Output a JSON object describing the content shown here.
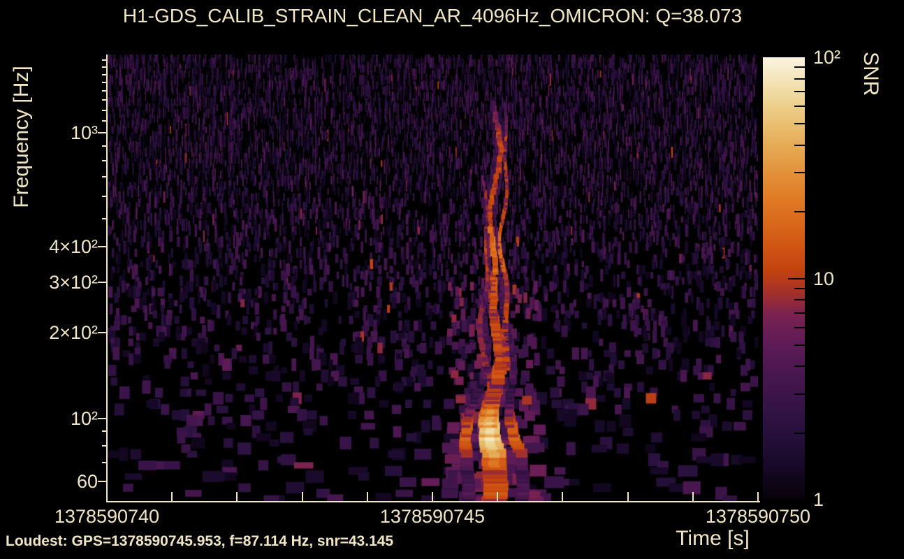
{
  "style": {
    "text_color": "#f1e6c4",
    "background_color": "#000000",
    "plot_background": "#000000"
  },
  "chart_data": {
    "type": "heatmap",
    "subtype": "omicron_q_transform_spectrogram",
    "title": "H1-GDS_CALIB_STRAIN_CLEAN_AR_4096Hz_OMICRON: Q=38.073",
    "q_value": 38.073,
    "xlabel": "Time [s]",
    "ylabel": "Frequency [Hz]",
    "x_unit": "GPS seconds",
    "xlim": [
      1378590740,
      1378590750
    ],
    "x_major_ticks": [
      {
        "value": 1378590740,
        "label": "1378590740"
      },
      {
        "value": 1378590745,
        "label": "1378590745"
      },
      {
        "value": 1378590750,
        "label": "1378590750"
      }
    ],
    "x_minor_tick_interval_s": 1,
    "yscale": "log",
    "ylim_hz": [
      51,
      1880
    ],
    "y_major_ticks": [
      {
        "hz": 1000,
        "label": "10³"
      },
      {
        "hz": 400,
        "label": "4×10²"
      },
      {
        "hz": 300,
        "label": "3×10²"
      },
      {
        "hz": 200,
        "label": "2×10²"
      },
      {
        "hz": 100,
        "label": "10²"
      },
      {
        "hz": 60,
        "label": "60"
      }
    ],
    "y_minor_ticks_hz": [
      60,
      70,
      80,
      90,
      100,
      200,
      300,
      400,
      500,
      600,
      700,
      800,
      900,
      1000,
      1100,
      1200,
      1300,
      1400,
      1500,
      1600,
      1700,
      1800,
      1900
    ],
    "colorbar": {
      "label": "SNR",
      "scale": "log",
      "lim": [
        1,
        100
      ],
      "major_ticks": [
        {
          "value": 100,
          "label": "10²"
        },
        {
          "value": 10,
          "label": "10"
        },
        {
          "value": 1,
          "label": "1"
        }
      ],
      "minor_ticks": [
        2,
        3,
        4,
        5,
        6,
        7,
        8,
        9,
        20,
        30,
        40,
        50,
        60,
        70,
        80,
        90
      ],
      "colormap_stops": [
        [
          0.0,
          "#060208"
        ],
        [
          0.07,
          "#150825"
        ],
        [
          0.14,
          "#241039"
        ],
        [
          0.21,
          "#351346"
        ],
        [
          0.29,
          "#4a1750"
        ],
        [
          0.36,
          "#611c57"
        ],
        [
          0.42,
          "#7a2250"
        ],
        [
          0.46,
          "#9e2e2e"
        ],
        [
          0.52,
          "#c4430f"
        ],
        [
          0.6,
          "#d55f17"
        ],
        [
          0.68,
          "#df7b24"
        ],
        [
          0.76,
          "#e39a42"
        ],
        [
          0.83,
          "#e8b765"
        ],
        [
          0.9,
          "#eed393"
        ],
        [
          0.96,
          "#f5e8c2"
        ],
        [
          1.0,
          "#faf4e0"
        ]
      ]
    },
    "loudest_label": "Loudest: GPS=1378590745.953, f=87.114 Hz, snr=43.145",
    "loudest_tile": {
      "gps": 1378590745.953,
      "frequency_hz": 87.114,
      "snr": 43.145
    },
    "features": {
      "burst": {
        "description": "loud broadband vertical glitch (bright orange streak)",
        "gps_span": [
          1378590745.6,
          1378590746.3
        ],
        "gps_center": 1378590745.953,
        "frequency_span_hz": [
          51,
          1250
        ],
        "peak": {
          "frequency_hz": 87.114,
          "snr": 43.145
        }
      },
      "background": {
        "description": "low-SNR dark purple speckle noise over full band, denser and finer at high frequency",
        "snr_range": [
          1,
          8
        ]
      }
    },
    "render": {
      "seed": 1378590746
    }
  }
}
